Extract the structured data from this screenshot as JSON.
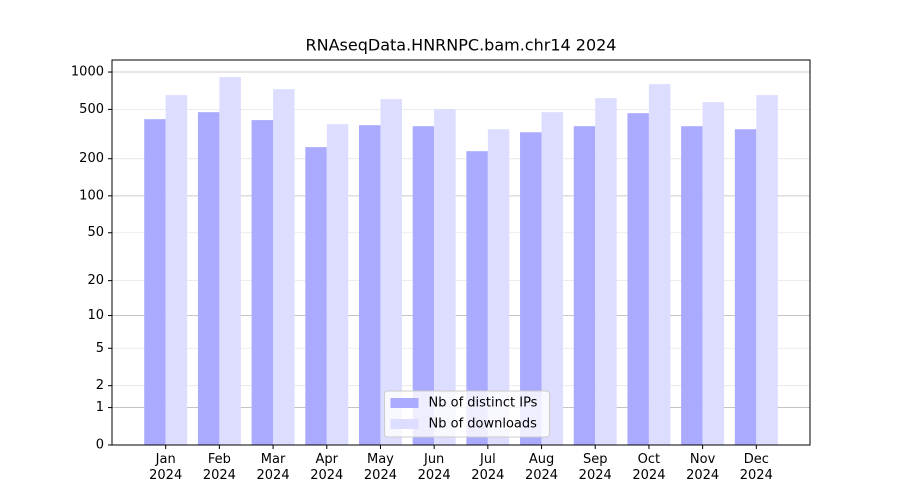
{
  "chart_data": {
    "type": "bar",
    "title": "RNAseqData.HNRNPC.bam.chr14 2024",
    "categories": [
      "Jan\n2024",
      "Feb\n2024",
      "Mar\n2024",
      "Apr\n2024",
      "May\n2024",
      "Jun\n2024",
      "Jul\n2024",
      "Aug\n2024",
      "Sep\n2024",
      "Oct\n2024",
      "Nov\n2024",
      "Dec\n2024"
    ],
    "series": [
      {
        "name": "Nb of distinct IPs",
        "color": "#aaaaff",
        "values": [
          417,
          475,
          410,
          248,
          373,
          366,
          230,
          327,
          366,
          466,
          366,
          346
        ]
      },
      {
        "name": "Nb of downloads",
        "color": "#ddddff",
        "values": [
          652,
          911,
          728,
          380,
          605,
          502,
          346,
          475,
          616,
          799,
          572,
          652
        ]
      }
    ],
    "yscale": "log1p",
    "ylim": [
      0,
      1250
    ],
    "yticks": [
      0,
      1,
      2,
      5,
      10,
      20,
      50,
      100,
      200,
      500,
      1000
    ],
    "grid": true,
    "legend": "lower center"
  }
}
